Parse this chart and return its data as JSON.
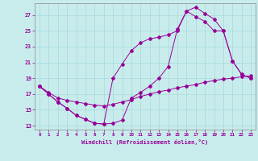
{
  "xlabel": "Windchill (Refroidissement éolien,°C)",
  "background_color": "#c8ecec",
  "grid_color": "#a8d8d8",
  "line_color": "#990099",
  "line1_x": [
    0,
    1,
    2,
    3,
    4,
    5,
    6,
    7,
    8,
    9,
    10,
    11,
    12,
    13,
    14,
    15,
    16,
    17,
    18,
    19,
    20,
    21,
    22,
    23
  ],
  "line1_y": [
    18.0,
    17.0,
    16.0,
    15.2,
    14.3,
    13.8,
    13.3,
    13.2,
    13.3,
    13.7,
    16.5,
    17.2,
    18.0,
    19.0,
    20.5,
    25.2,
    27.5,
    28.0,
    27.2,
    26.5,
    25.0,
    21.2,
    19.5,
    19.0
  ],
  "line2_x": [
    0,
    1,
    2,
    3,
    4,
    5,
    6,
    7,
    8,
    9,
    10,
    11,
    12,
    13,
    14,
    15,
    16,
    17,
    18,
    19,
    20,
    21,
    22,
    23
  ],
  "line2_y": [
    18.0,
    17.0,
    16.0,
    15.2,
    14.3,
    13.8,
    13.3,
    13.2,
    19.0,
    20.8,
    22.5,
    23.5,
    24.0,
    24.2,
    24.5,
    25.0,
    27.5,
    26.8,
    26.2,
    25.0,
    25.0,
    21.2,
    19.5,
    19.0
  ],
  "line3_x": [
    0,
    1,
    2,
    3,
    4,
    5,
    6,
    7,
    8,
    9,
    10,
    11,
    12,
    13,
    14,
    15,
    16,
    17,
    18,
    19,
    20,
    21,
    22,
    23
  ],
  "line3_y": [
    18.0,
    17.2,
    16.5,
    16.2,
    16.0,
    15.8,
    15.6,
    15.5,
    15.7,
    16.0,
    16.3,
    16.7,
    17.0,
    17.3,
    17.5,
    17.8,
    18.0,
    18.2,
    18.5,
    18.7,
    18.9,
    19.0,
    19.2,
    19.3
  ],
  "xlim": [
    -0.5,
    23.5
  ],
  "ylim": [
    12.5,
    28.5
  ],
  "yticks": [
    13,
    15,
    17,
    19,
    21,
    23,
    25,
    27
  ],
  "xticks": [
    0,
    1,
    2,
    3,
    4,
    5,
    6,
    7,
    8,
    9,
    10,
    11,
    12,
    13,
    14,
    15,
    16,
    17,
    18,
    19,
    20,
    21,
    22,
    23
  ]
}
